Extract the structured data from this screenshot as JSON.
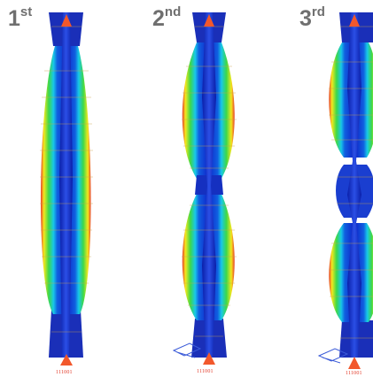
{
  "modes": [
    {
      "label_main": "1",
      "label_sup": "st",
      "node_label": "111001",
      "half_waves": 1
    },
    {
      "label_main": "2",
      "label_sup": "nd",
      "node_label": "111001",
      "half_waves": 2
    },
    {
      "label_main": "3",
      "label_sup": "rd",
      "node_label": "111001",
      "half_waves": 3
    }
  ],
  "colors": {
    "label": "#6f6f6f",
    "flange": "#1a2fb8",
    "web": "#0a1fa8",
    "contour_low": "#1020c8",
    "contour_mid": "#18c8e8",
    "contour_mid2": "#3cd84a",
    "contour_high": "#f4e81c",
    "contour_peak": "#e8402a",
    "support_marker": "#f2582c",
    "node_text": "#e23b2a"
  }
}
